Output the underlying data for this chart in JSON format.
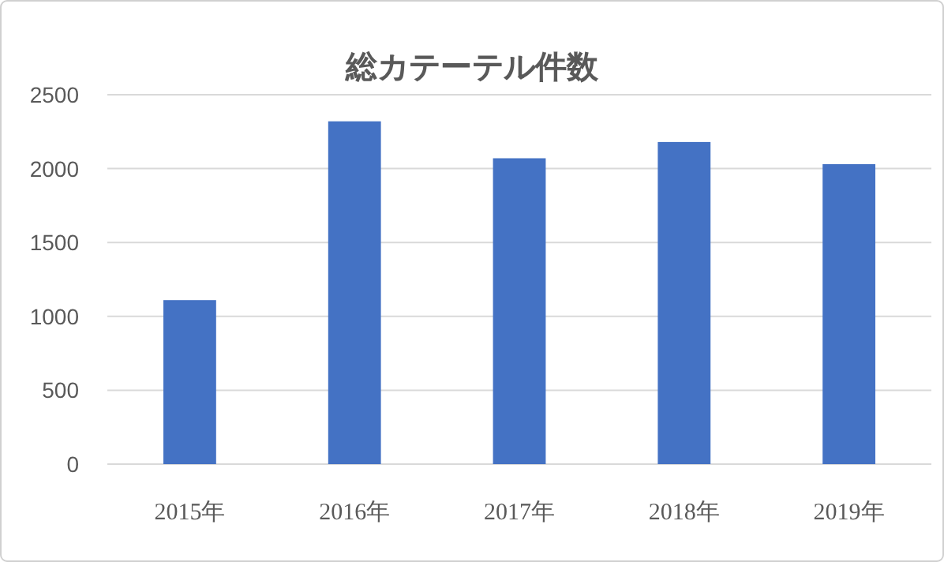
{
  "chart_data": {
    "type": "bar",
    "title": "総カテーテル件数",
    "categories": [
      "2015年",
      "2016年",
      "2017年",
      "2018年",
      "2019年"
    ],
    "values": [
      1110,
      2320,
      2070,
      2180,
      2030
    ],
    "color": "#4472c4",
    "ylim": [
      0,
      2500
    ],
    "yticks": [
      0,
      500,
      1000,
      1500,
      2000,
      2500
    ],
    "grid": "y"
  }
}
